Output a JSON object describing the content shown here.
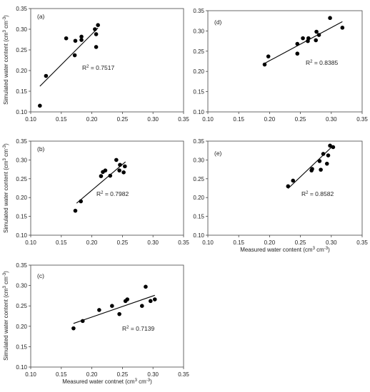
{
  "chart_data": [
    {
      "type": "scatter",
      "panel_label": "(a)",
      "xlabel": "",
      "ylabel": "Simulated water content (cm³ cm⁻³)",
      "xlim": [
        0.1,
        0.35
      ],
      "ylim": [
        0.1,
        0.35
      ],
      "xticks": [
        "0.10",
        "0.15",
        "0.20",
        "0.25",
        "0.30",
        "0.35"
      ],
      "yticks": [
        "0.10",
        "0.15",
        "0.20",
        "0.25",
        "0.30",
        "0.35"
      ],
      "points": [
        [
          0.115,
          0.115
        ],
        [
          0.125,
          0.187
        ],
        [
          0.158,
          0.278
        ],
        [
          0.172,
          0.237
        ],
        [
          0.173,
          0.272
        ],
        [
          0.183,
          0.282
        ],
        [
          0.183,
          0.274
        ],
        [
          0.205,
          0.3
        ],
        [
          0.207,
          0.288
        ],
        [
          0.207,
          0.257
        ],
        [
          0.21,
          0.31
        ]
      ],
      "fit_line": [
        [
          0.115,
          0.162
        ],
        [
          0.21,
          0.303
        ]
      ],
      "r2_text": "R² = 0.7517"
    },
    {
      "type": "scatter",
      "panel_label": "(d)",
      "xlabel": "",
      "ylabel": "",
      "xlim": [
        0.1,
        0.35
      ],
      "ylim": [
        0.1,
        0.35
      ],
      "xticks": [
        "0.10",
        "0.15",
        "0.20",
        "0.25",
        "0.30",
        "0.35"
      ],
      "yticks": [
        "0.10",
        "0.15",
        "0.20",
        "0.25",
        "0.30",
        "0.35"
      ],
      "points": [
        [
          0.192,
          0.217
        ],
        [
          0.198,
          0.237
        ],
        [
          0.245,
          0.244
        ],
        [
          0.245,
          0.268
        ],
        [
          0.254,
          0.282
        ],
        [
          0.262,
          0.275
        ],
        [
          0.263,
          0.282
        ],
        [
          0.275,
          0.277
        ],
        [
          0.276,
          0.298
        ],
        [
          0.28,
          0.29
        ],
        [
          0.298,
          0.332
        ],
        [
          0.318,
          0.308
        ]
      ],
      "fit_line": [
        [
          0.192,
          0.22
        ],
        [
          0.318,
          0.323
        ]
      ],
      "r2_text": "R² = 0.8385"
    },
    {
      "type": "scatter",
      "panel_label": "(b)",
      "xlabel": "",
      "ylabel": "Simulated water content (cm³ cm⁻³)",
      "xlim": [
        0.1,
        0.35
      ],
      "ylim": [
        0.1,
        0.35
      ],
      "xticks": [
        "0.10",
        "0.15",
        "0.20",
        "0.25",
        "0.30",
        "0.35"
      ],
      "yticks": [
        "0.10",
        "0.15",
        "0.20",
        "0.25",
        "0.30",
        "0.35"
      ],
      "points": [
        [
          0.173,
          0.165
        ],
        [
          0.182,
          0.19
        ],
        [
          0.215,
          0.257
        ],
        [
          0.218,
          0.268
        ],
        [
          0.222,
          0.272
        ],
        [
          0.23,
          0.258
        ],
        [
          0.24,
          0.3
        ],
        [
          0.245,
          0.272
        ],
        [
          0.246,
          0.287
        ],
        [
          0.252,
          0.267
        ],
        [
          0.254,
          0.283
        ]
      ],
      "fit_line": [
        [
          0.175,
          0.185
        ],
        [
          0.255,
          0.295
        ]
      ],
      "r2_text": "R² = 0.7982"
    },
    {
      "type": "scatter",
      "panel_label": "(e)",
      "xlabel": "Measured water content (cm³ cm⁻³)",
      "ylabel": "",
      "xlim": [
        0.1,
        0.35
      ],
      "ylim": [
        0.1,
        0.35
      ],
      "xticks": [
        "0.10",
        "0.15",
        "0.20",
        "0.25",
        "0.30",
        "0.35"
      ],
      "yticks": [
        "0.10",
        "0.15",
        "0.20",
        "0.25",
        "0.30",
        "0.35"
      ],
      "points": [
        [
          0.23,
          0.23
        ],
        [
          0.238,
          0.245
        ],
        [
          0.268,
          0.272
        ],
        [
          0.269,
          0.276
        ],
        [
          0.281,
          0.297
        ],
        [
          0.283,
          0.274
        ],
        [
          0.287,
          0.316
        ],
        [
          0.293,
          0.29
        ],
        [
          0.295,
          0.312
        ],
        [
          0.298,
          0.338
        ],
        [
          0.303,
          0.334
        ]
      ],
      "fit_line": [
        [
          0.23,
          0.224
        ],
        [
          0.303,
          0.338
        ]
      ],
      "r2_text": "R² = 0.8582"
    },
    {
      "type": "scatter",
      "panel_label": "(c)",
      "xlabel": "Measured water contnet (cm³ cm⁻³)",
      "ylabel": "Simulated water content (cm³ cm⁻³)",
      "xlim": [
        0.1,
        0.35
      ],
      "ylim": [
        0.1,
        0.35
      ],
      "xticks": [
        "0.10",
        "0.15",
        "0.20",
        "0.25",
        "0.30",
        "0.35"
      ],
      "yticks": [
        "0.10",
        "0.15",
        "0.20",
        "0.25",
        "0.30",
        "0.35"
      ],
      "points": [
        [
          0.17,
          0.195
        ],
        [
          0.185,
          0.213
        ],
        [
          0.212,
          0.24
        ],
        [
          0.233,
          0.25
        ],
        [
          0.245,
          0.23
        ],
        [
          0.255,
          0.262
        ],
        [
          0.258,
          0.266
        ],
        [
          0.282,
          0.25
        ],
        [
          0.288,
          0.297
        ],
        [
          0.296,
          0.262
        ],
        [
          0.303,
          0.266
        ]
      ],
      "fit_line": [
        [
          0.17,
          0.207
        ],
        [
          0.303,
          0.276
        ]
      ],
      "r2_text": "R² = 0.7139"
    }
  ]
}
